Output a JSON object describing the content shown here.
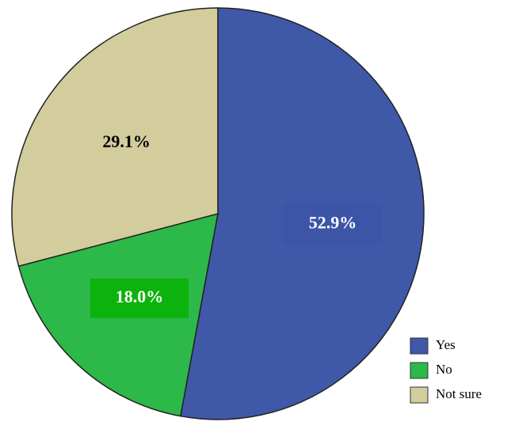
{
  "chart_data": {
    "type": "pie",
    "categories": [
      "Yes",
      "No",
      "Not sure"
    ],
    "values": [
      52.9,
      18.0,
      29.1
    ],
    "value_labels": [
      "52.9%",
      "18.0%",
      "29.1%"
    ],
    "colors": [
      "#3f58a8",
      "#2db84a",
      "#d3cc9c"
    ],
    "label_colors": [
      "#ffffff",
      "#ffffff",
      "#000000"
    ],
    "label_backgrounds": [
      "#3d55a6",
      "#0cb30c",
      "#d3cc9c"
    ],
    "legend": "bottom-right"
  }
}
